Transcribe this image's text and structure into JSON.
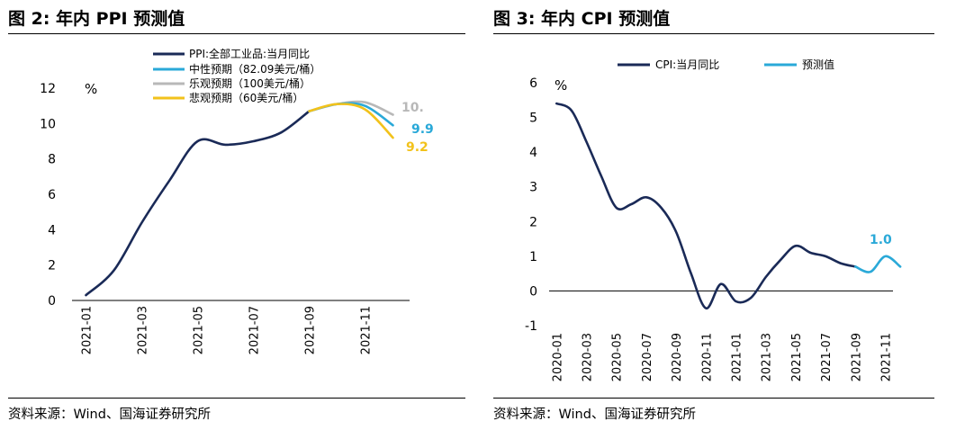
{
  "left": {
    "title": "图 2:  年内 PPI 预测值",
    "source": "资料来源：Wind、国海证券研究所"
  },
  "right": {
    "title": "图 3:  年内 CPI 预测值",
    "source": "资料来源：Wind、国海证券研究所"
  },
  "colors": {
    "actual": "#1a2a57",
    "neutral": "#2aa9d8",
    "optimistic": "#b8b8b8",
    "pessimistic": "#f2c21b"
  },
  "chart_data": [
    {
      "type": "line",
      "title": "图 2:  年内 PPI 预测值",
      "ylabel": "%",
      "ylim": [
        0,
        12
      ],
      "yticks": [
        0,
        2,
        4,
        6,
        8,
        10,
        12
      ],
      "xticklabels": [
        "2021-01",
        "2021-03",
        "2021-05",
        "2021-07",
        "2021-09",
        "2021-11"
      ],
      "grid": false,
      "legend_position": "top-center",
      "series": [
        {
          "name": "PPI:全部工业品:当月同比",
          "color": "actual",
          "x": [
            "2021-01",
            "2021-02",
            "2021-03",
            "2021-04",
            "2021-05",
            "2021-06",
            "2021-07",
            "2021-08",
            "2021-09"
          ],
          "values": [
            0.3,
            1.7,
            4.4,
            6.8,
            9.0,
            8.8,
            9.0,
            9.5,
            10.7
          ]
        },
        {
          "name": "中性预期（82.09美元/桶）",
          "color": "neutral",
          "x": [
            "2021-09",
            "2021-10",
            "2021-11",
            "2021-12"
          ],
          "values": [
            10.7,
            11.1,
            11.0,
            9.9
          ]
        },
        {
          "name": "乐观预期（100美元/桶）",
          "color": "optimistic",
          "x": [
            "2021-09",
            "2021-10",
            "2021-11",
            "2021-12"
          ],
          "values": [
            10.7,
            11.1,
            11.2,
            10.5
          ]
        },
        {
          "name": "悲观预期（60美元/桶）",
          "color": "pessimistic",
          "x": [
            "2021-09",
            "2021-10",
            "2021-11",
            "2021-12"
          ],
          "values": [
            10.7,
            11.1,
            10.8,
            9.2
          ]
        }
      ],
      "data_labels": [
        {
          "text": "10.",
          "series": "optimistic"
        },
        {
          "text": "9.9",
          "series": "neutral"
        },
        {
          "text": "9.2",
          "series": "pessimistic"
        }
      ]
    },
    {
      "type": "line",
      "title": "图 3:  年内 CPI 预测值",
      "ylabel": "%",
      "ylim": [
        -1,
        6
      ],
      "yticks": [
        -1,
        0,
        1,
        2,
        3,
        4,
        5,
        6
      ],
      "xticklabels": [
        "2020-01",
        "2020-03",
        "2020-05",
        "2020-07",
        "2020-09",
        "2020-11",
        "2021-01",
        "2021-03",
        "2021-05",
        "2021-07",
        "2021-09",
        "2021-11"
      ],
      "grid": false,
      "legend_position": "top",
      "series": [
        {
          "name": "CPI:当月同比",
          "color": "actual",
          "x": [
            "2020-01",
            "2020-02",
            "2020-03",
            "2020-04",
            "2020-05",
            "2020-06",
            "2020-07",
            "2020-08",
            "2020-09",
            "2020-10",
            "2020-11",
            "2020-12",
            "2021-01",
            "2021-02",
            "2021-03",
            "2021-04",
            "2021-05",
            "2021-06",
            "2021-07",
            "2021-08",
            "2021-09"
          ],
          "values": [
            5.4,
            5.2,
            4.3,
            3.3,
            2.4,
            2.5,
            2.7,
            2.4,
            1.7,
            0.5,
            -0.5,
            0.2,
            -0.3,
            -0.2,
            0.4,
            0.9,
            1.3,
            1.1,
            1.0,
            0.8,
            0.7
          ]
        },
        {
          "name": "预测值",
          "color": "neutral",
          "x": [
            "2021-09",
            "2021-10",
            "2021-11",
            "2021-12"
          ],
          "values": [
            0.7,
            0.55,
            1.0,
            0.7
          ]
        }
      ],
      "data_labels": [
        {
          "text": "1.0",
          "series": "预测值"
        }
      ]
    }
  ]
}
